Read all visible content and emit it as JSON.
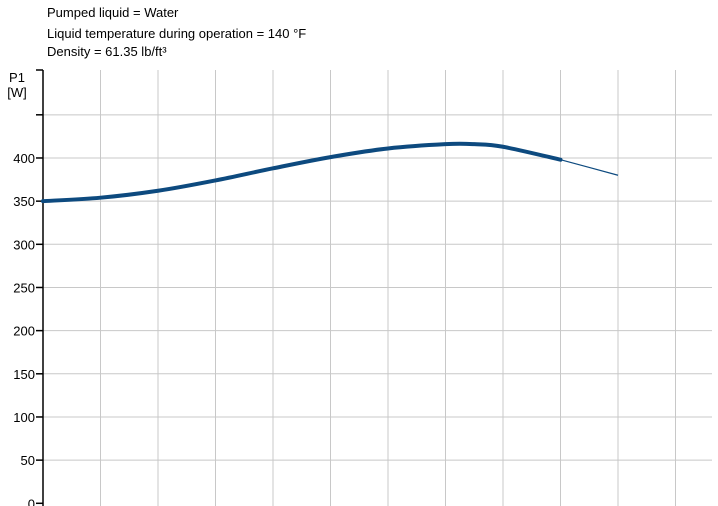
{
  "header": {
    "lines": [
      "Pumped liquid = Water",
      "Liquid temperature during operation = 140 °F",
      "Density = 61.35 lb/ft³"
    ]
  },
  "chart_data": {
    "type": "line",
    "ylabel": "P1",
    "yunit": "[W]",
    "ylim": [
      0,
      450
    ],
    "yticks": [
      0,
      50,
      100,
      150,
      200,
      250,
      300,
      350,
      400
    ],
    "grid": true,
    "x_gridlines": 11,
    "series": [
      {
        "color": "#0d4a7f",
        "points": [
          [
            0,
            350
          ],
          [
            1,
            354
          ],
          [
            2,
            362
          ],
          [
            3,
            374
          ],
          [
            4,
            388
          ],
          [
            5,
            401
          ],
          [
            6,
            411
          ],
          [
            7,
            416
          ],
          [
            7.5,
            416
          ],
          [
            8,
            413
          ],
          [
            9,
            398
          ]
        ],
        "extension_points": [
          [
            9,
            398
          ],
          [
            10,
            380
          ]
        ]
      }
    ]
  }
}
